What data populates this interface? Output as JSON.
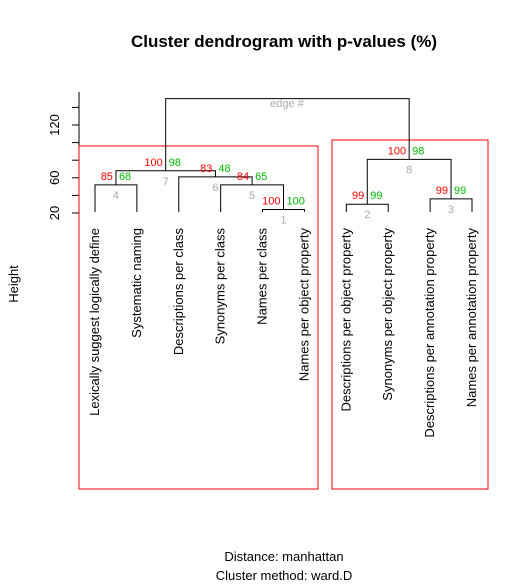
{
  "chart_data": {
    "type": "dendrogram",
    "title": "Cluster dendrogram with p-values (%)",
    "ylabel": "Height",
    "subtitle_lines": [
      "Distance:  manhattan",
      "Cluster method: ward.D"
    ],
    "edge_label": "edge #",
    "y_ticks": [
      20,
      60,
      120
    ],
    "ylim": [
      20,
      155
    ],
    "colors": {
      "au": "#ff0000",
      "bp": "#00bb00",
      "edge": "#aaaaaa",
      "rect": "#ff0000",
      "line": "#000000"
    },
    "leaves": [
      "Lexically suggest logically define",
      "Systematic naming",
      "Descriptions per class",
      "Synonyms per class",
      "Names per class",
      "Names per object property",
      "Descriptions per object property",
      "Synonyms per object property",
      "Descriptions per annotation property",
      "Names per annotation property"
    ],
    "nodes": [
      {
        "id": 1,
        "left": "L5",
        "right": "L6",
        "height": 24,
        "au": "100",
        "bp": "100",
        "edge": "1"
      },
      {
        "id": 2,
        "left": "L7",
        "right": "L8",
        "height": 30,
        "au": "99",
        "bp": "99",
        "edge": "2"
      },
      {
        "id": 3,
        "left": "L9",
        "right": "L10",
        "height": 36,
        "au": "99",
        "bp": "99",
        "edge": "3"
      },
      {
        "id": 4,
        "left": "L1",
        "right": "L2",
        "height": 52,
        "au": "85",
        "bp": "68",
        "edge": "4"
      },
      {
        "id": 5,
        "left": "L4",
        "right": "N1",
        "height": 52,
        "au": "84",
        "bp": "65",
        "edge": "5"
      },
      {
        "id": 6,
        "left": "L3",
        "right": "N5",
        "height": 61,
        "au": "83",
        "bp": "48",
        "edge": "6"
      },
      {
        "id": 7,
        "left": "N4",
        "right": "N6",
        "height": 68,
        "au": "100",
        "bp": "98",
        "edge": "7"
      },
      {
        "id": 8,
        "left": "N2",
        "right": "N3",
        "height": 81,
        "au": "100",
        "bp": "98",
        "edge": "8"
      },
      {
        "id": 9,
        "left": "N7",
        "right": "N8",
        "height": 150,
        "au": "",
        "bp": "",
        "edge": ""
      }
    ],
    "clusters": [
      {
        "leaves": [
          1,
          6
        ]
      },
      {
        "leaves": [
          7,
          10
        ]
      }
    ]
  }
}
